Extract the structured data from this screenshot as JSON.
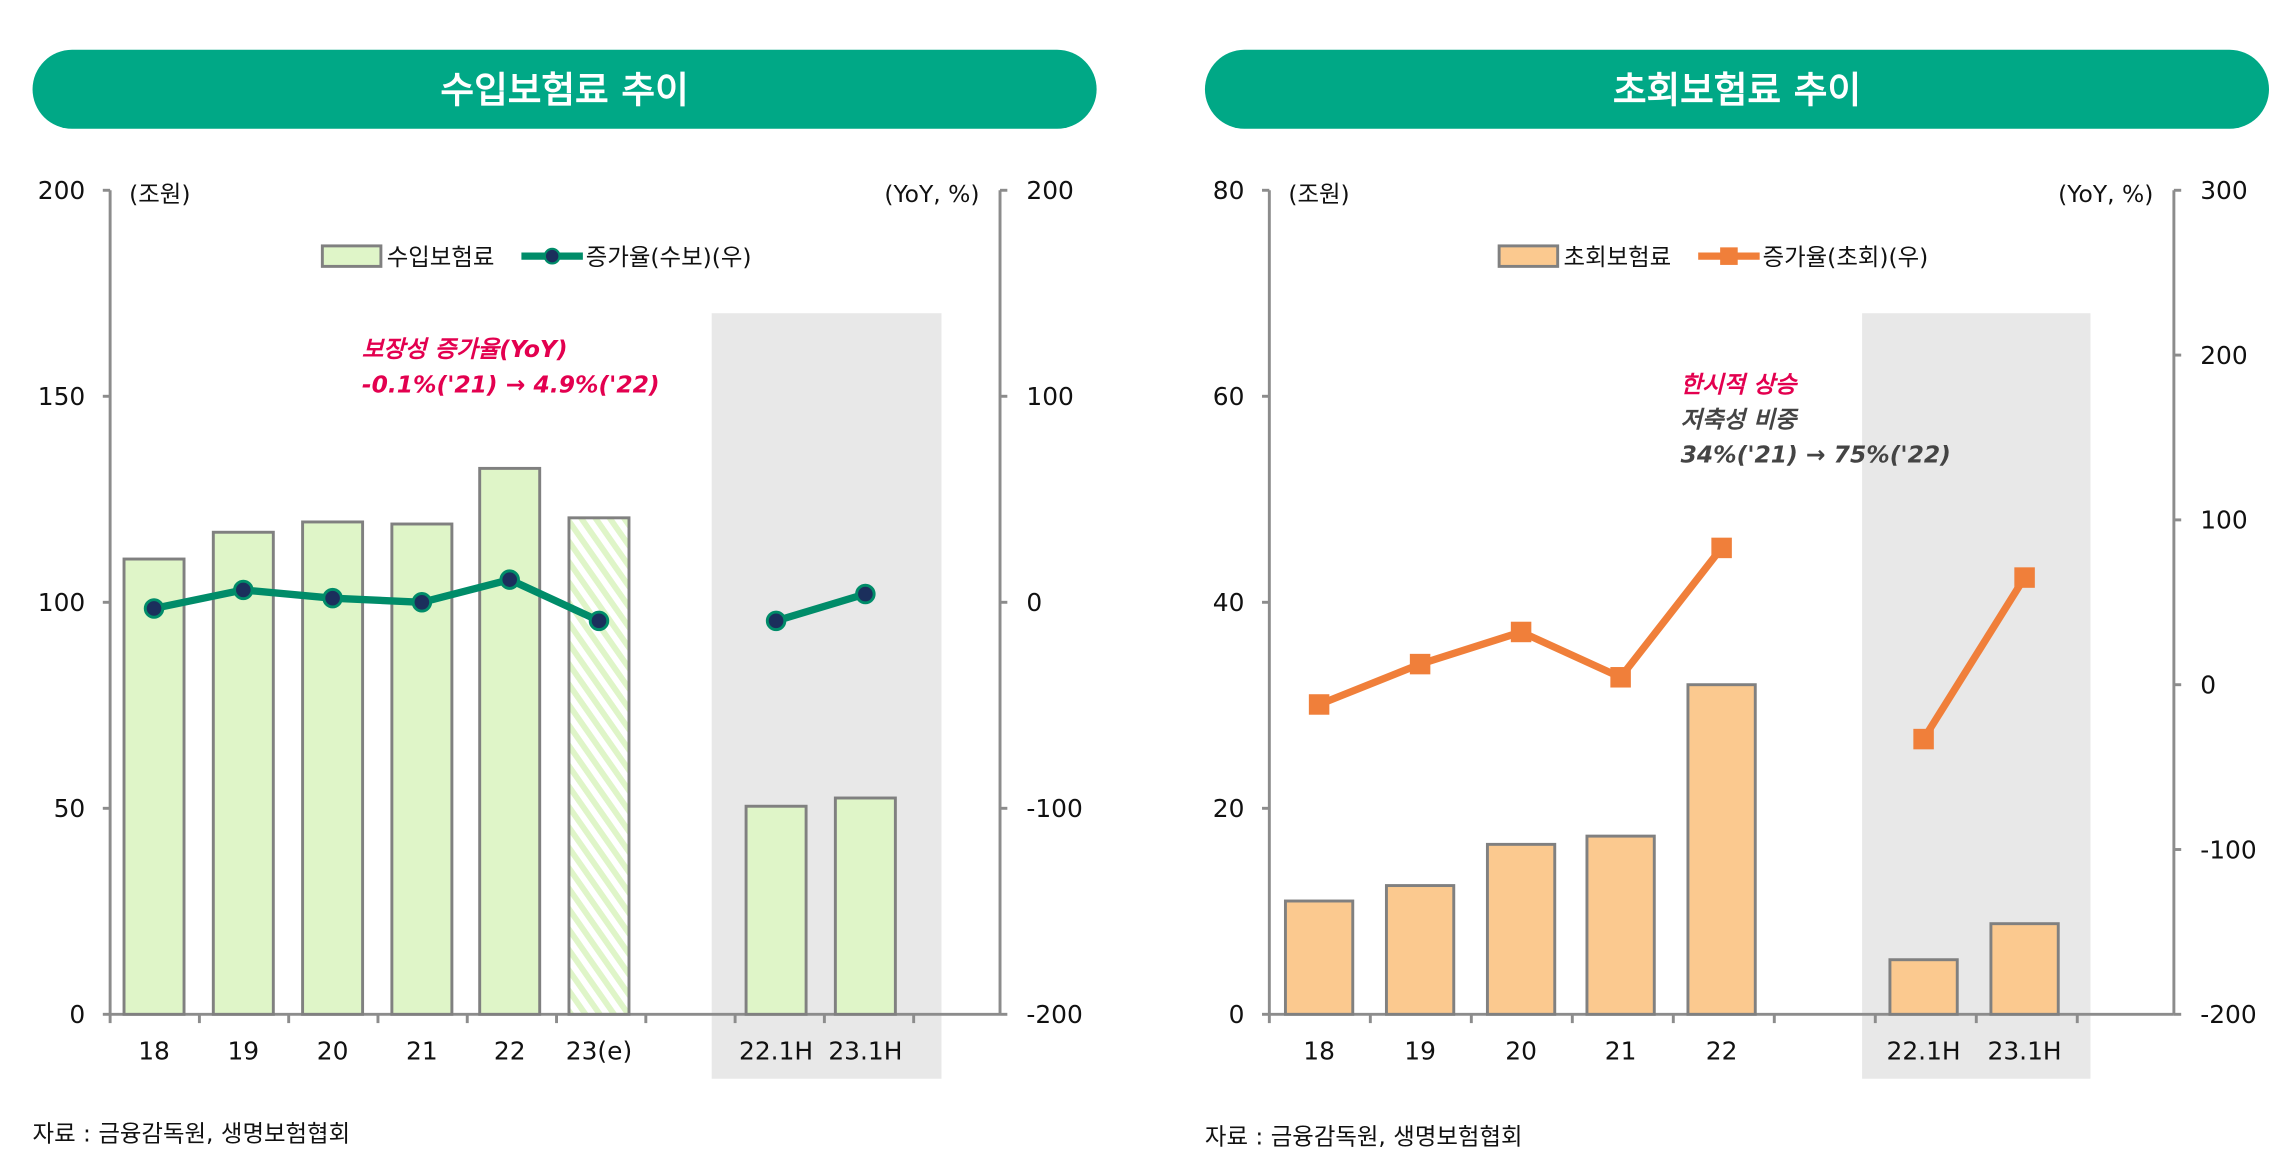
{
  "colors": {
    "header": "#00a886",
    "annotation_red": "#e3004f",
    "annotation_gray": "#444444",
    "shade": "#e8e8e8",
    "axis": "#8c8c8c"
  },
  "chart_data": [
    {
      "type": "bar+line",
      "title": "수입보험료 추이",
      "left_unit": "(조원)",
      "right_unit": "(YoY, %)",
      "ylim": [
        0,
        200
      ],
      "yticks": [
        0,
        50,
        100,
        150,
        200
      ],
      "y2lim": [
        -200,
        200
      ],
      "y2ticks": [
        -200,
        -100,
        0,
        100,
        200
      ],
      "categories": [
        "18",
        "19",
        "20",
        "21",
        "22",
        "23(e)",
        "22.1H",
        "23.1H"
      ],
      "hatched_categories": [
        "23(e)"
      ],
      "shaded_categories": [
        "22.1H",
        "23.1H"
      ],
      "bar_series": {
        "name": "수입보험료",
        "values": [
          110.5,
          117,
          119.5,
          119,
          132.5,
          120.5,
          50.5,
          52.5
        ],
        "fill": "#dff5c8",
        "stroke": "#808080"
      },
      "line_series": {
        "name": "증가율(수보)(우)",
        "values": [
          -3,
          6,
          2,
          0,
          11,
          -9,
          -9,
          4
        ],
        "color": "#008c69",
        "marker": "circle",
        "marker_fill": "#1b2f5c"
      },
      "annotation": {
        "lines": [
          {
            "text": "보장성 증가율(YoY)",
            "color": "#e3004f"
          },
          {
            "text": "-0.1%('21) → 4.9%('22)",
            "color": "#e3004f"
          }
        ]
      },
      "legend": "top-center",
      "source": "자료 : 금융감독원, 생명보험협회"
    },
    {
      "type": "bar+line",
      "title": "초회보험료 추이",
      "left_unit": "(조원)",
      "right_unit": "(YoY, %)",
      "ylim": [
        0,
        80
      ],
      "yticks": [
        0,
        20,
        40,
        60,
        80
      ],
      "y2lim": [
        -200,
        300
      ],
      "y2ticks": [
        -200,
        -100,
        0,
        100,
        200,
        300
      ],
      "categories": [
        "18",
        "19",
        "20",
        "21",
        "22",
        "22.1H",
        "23.1H"
      ],
      "hatched_categories": [],
      "shaded_categories": [
        "22.1H",
        "23.1H"
      ],
      "bar_series": {
        "name": "초회보험료",
        "values": [
          11,
          12.5,
          16.5,
          17.3,
          32,
          5.3,
          8.8
        ],
        "fill": "#fbc98f",
        "stroke": "#808080"
      },
      "line_series": {
        "name": "증가율(초회)(우)",
        "values": [
          -12,
          12.5,
          32,
          4.5,
          83,
          -33,
          65
        ],
        "color": "#f07f3a",
        "marker": "square",
        "marker_fill": "#f07f3a"
      },
      "annotation": {
        "lines": [
          {
            "text": "한시적 상승",
            "color": "#e3004f"
          },
          {
            "text": "저축성 비중",
            "color": "#444444"
          },
          {
            "text": "34%('21) → 75%('22)",
            "color": "#444444"
          }
        ]
      },
      "legend": "top-center",
      "source": "자료 : 금융감독원, 생명보험협회"
    }
  ]
}
